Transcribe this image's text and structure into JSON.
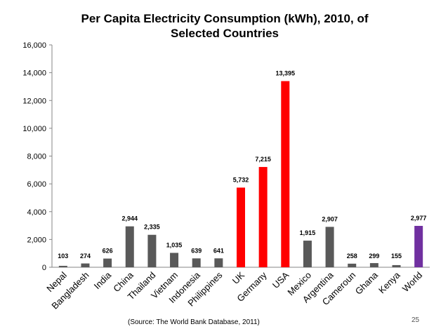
{
  "chart_data": {
    "type": "bar",
    "title_line1": "Per Capita Electricity Consumption (kWh), 2010, of",
    "title_line2": "Selected Countries",
    "categories": [
      "Nepal",
      "Bangladesh",
      "India",
      "China",
      "Thailand",
      "Vietnam",
      "Indonesia",
      "Philippines",
      "UK",
      "Germany",
      "USA",
      "Mexico",
      "Argentina",
      "Cameroun",
      "Ghana",
      "Kenya",
      "World"
    ],
    "values": [
      103,
      274,
      626,
      2944,
      2335,
      1035,
      639,
      641,
      5732,
      7215,
      13395,
      1915,
      2907,
      258,
      299,
      155,
      2977
    ],
    "value_labels": [
      "103",
      "274",
      "626",
      "2,944",
      "2,335",
      "1,035",
      "639",
      "641",
      "5,732",
      "7,215",
      "13,395",
      "1,915",
      "2,907",
      "258",
      "299",
      "155",
      "2,977"
    ],
    "bar_colors": [
      "#595959",
      "#595959",
      "#595959",
      "#595959",
      "#595959",
      "#595959",
      "#595959",
      "#595959",
      "#ff0000",
      "#ff0000",
      "#ff0000",
      "#595959",
      "#595959",
      "#595959",
      "#595959",
      "#595959",
      "#7030a0"
    ],
    "yticks": [
      0,
      2000,
      4000,
      6000,
      8000,
      10000,
      12000,
      14000,
      16000
    ],
    "ytick_labels": [
      "0",
      "2,000",
      "4,000",
      "6,000",
      "8,000",
      "10,000",
      "12,000",
      "14,000",
      "16,000"
    ],
    "ylim": [
      0,
      16000
    ],
    "xlabel": "",
    "ylabel": "",
    "grid": false,
    "legend": "none"
  },
  "footer": {
    "source": "(Source:  The World Bank  Database, 2011)",
    "page_number": "25"
  }
}
